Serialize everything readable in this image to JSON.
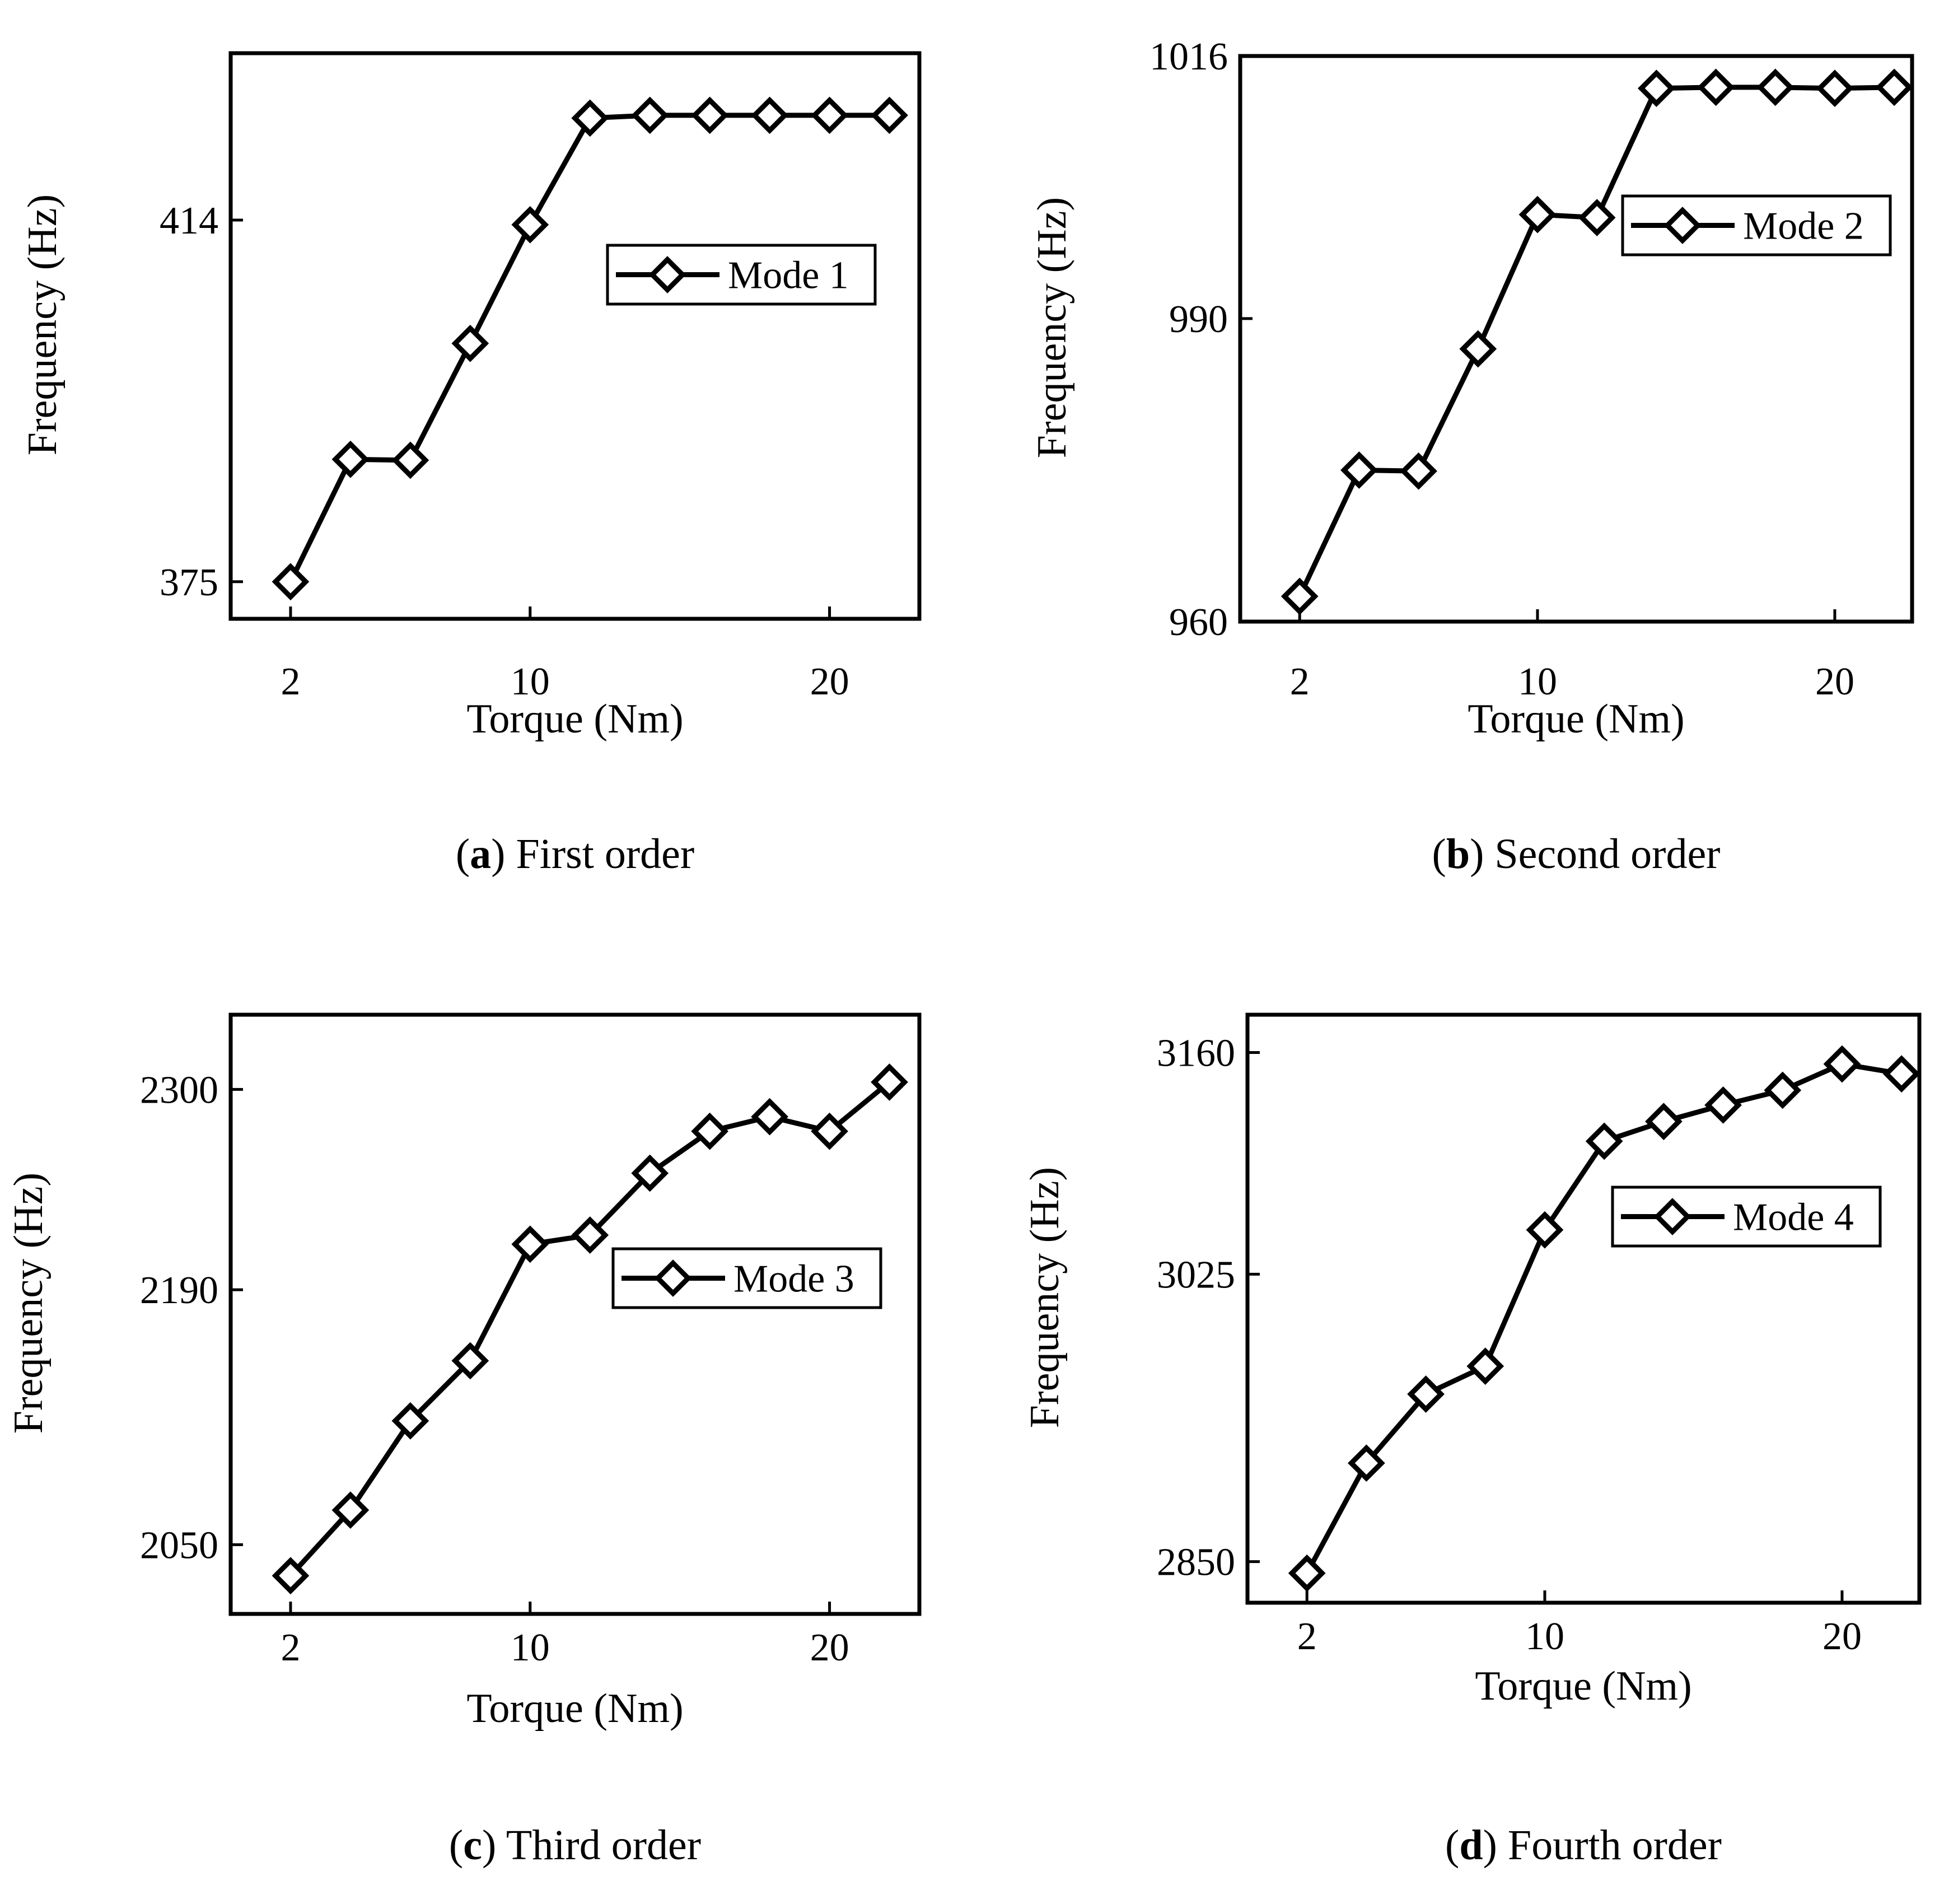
{
  "chart_data": [
    {
      "type": "line",
      "panel": "a",
      "caption_letter": "a",
      "caption_text": "First order",
      "title": "",
      "xlabel": "Torque (Nm)",
      "ylabel": "Frequency (Hz)",
      "xlim": [
        0,
        23
      ],
      "ylim": [
        371,
        432
      ],
      "xticks": [
        2,
        10,
        20
      ],
      "yticks": [
        375,
        414
      ],
      "x": [
        2,
        4,
        6,
        8,
        10,
        12,
        14,
        16,
        18,
        20,
        22
      ],
      "series": [
        {
          "name": "Mode 1",
          "values": [
            375,
            388.2,
            388.1,
            400.7,
            413.5,
            425,
            425.3,
            425.3,
            425.3,
            425.3,
            425.3
          ]
        }
      ],
      "legend": "upper-right"
    },
    {
      "type": "line",
      "panel": "b",
      "caption_letter": "b",
      "caption_text": "Second order",
      "title": "",
      "xlabel": "Torque (Nm)",
      "ylabel": "Frequency (Hz)",
      "xlim": [
        0,
        22.6
      ],
      "ylim": [
        960,
        1016
      ],
      "xticks": [
        2,
        10,
        20
      ],
      "yticks": [
        960,
        990,
        1016
      ],
      "x": [
        2,
        4,
        6,
        8,
        10,
        12,
        14,
        16,
        18,
        20,
        22
      ],
      "series": [
        {
          "name": "Mode 2",
          "values": [
            962.5,
            975,
            974.9,
            987,
            1000.3,
            1000,
            1012.8,
            1012.9,
            1012.9,
            1012.8,
            1012.9
          ]
        }
      ],
      "legend": "upper-right"
    },
    {
      "type": "line",
      "panel": "c",
      "caption_letter": "c",
      "caption_text": "Third order",
      "title": "",
      "xlabel": "Torque (Nm)",
      "ylabel": "Frequency (Hz)",
      "xlim": [
        0,
        23
      ],
      "ylim": [
        2012,
        2341
      ],
      "xticks": [
        2,
        10,
        20
      ],
      "yticks": [
        2050,
        2190,
        2300
      ],
      "x": [
        2,
        4,
        6,
        8,
        10,
        12,
        14,
        16,
        18,
        20,
        22
      ],
      "series": [
        {
          "name": "Mode 3",
          "values": [
            2033,
            2069,
            2118,
            2151,
            2215,
            2220,
            2254,
            2277,
            2285,
            2277,
            2304
          ]
        }
      ],
      "legend": "middle-right"
    },
    {
      "type": "line",
      "panel": "d",
      "caption_letter": "d",
      "caption_text": "Fourth order",
      "title": "",
      "xlabel": "Torque (Nm)",
      "ylabel": "Frequency (Hz)",
      "xlim": [
        0,
        22.6
      ],
      "ylim": [
        2825,
        3183
      ],
      "xticks": [
        2,
        10,
        20
      ],
      "yticks": [
        2850,
        3025,
        3160
      ],
      "x": [
        2,
        4,
        6,
        8,
        10,
        12,
        14,
        16,
        18,
        20,
        22
      ],
      "series": [
        {
          "name": "Mode 4",
          "values": [
            2843,
            2910,
            2952,
            2969,
            3052,
            3106,
            3118,
            3128,
            3137,
            3153,
            3147
          ]
        }
      ],
      "legend": "upper-right"
    }
  ]
}
